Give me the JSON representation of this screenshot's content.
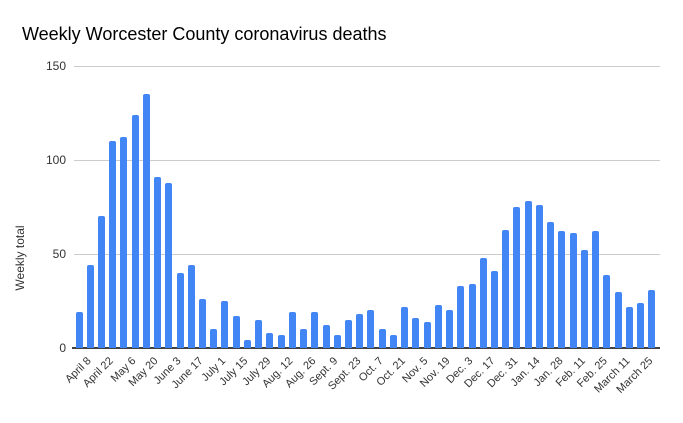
{
  "chart_data": {
    "type": "bar",
    "title": "Weekly Worcester County coronavirus deaths",
    "xlabel": "",
    "ylabel": "Weekly total",
    "ylim": [
      0,
      150
    ],
    "y_ticks": [
      0,
      50,
      100,
      150
    ],
    "grid": true,
    "legend_position": "none",
    "bar_color": "#4285f4",
    "gridline_color": "#cccccc",
    "axis_color": "#424242",
    "label_note": "date labels shown under every other bar",
    "bars": [
      {
        "label": "April 8",
        "value": 19
      },
      {
        "label": "",
        "value": 44
      },
      {
        "label": "April 22",
        "value": 70
      },
      {
        "label": "",
        "value": 110
      },
      {
        "label": "May 6",
        "value": 112
      },
      {
        "label": "",
        "value": 124
      },
      {
        "label": "May 20",
        "value": 135
      },
      {
        "label": "",
        "value": 91
      },
      {
        "label": "June 3",
        "value": 88
      },
      {
        "label": "",
        "value": 40
      },
      {
        "label": "June 17",
        "value": 44
      },
      {
        "label": "",
        "value": 26
      },
      {
        "label": "July 1",
        "value": 10
      },
      {
        "label": "",
        "value": 25
      },
      {
        "label": "July 15",
        "value": 17
      },
      {
        "label": "",
        "value": 4
      },
      {
        "label": "July 29",
        "value": 15
      },
      {
        "label": "",
        "value": 8
      },
      {
        "label": "Aug. 12",
        "value": 7
      },
      {
        "label": "",
        "value": 19
      },
      {
        "label": "Aug. 26",
        "value": 10
      },
      {
        "label": "",
        "value": 19
      },
      {
        "label": "Sept. 9",
        "value": 12
      },
      {
        "label": "",
        "value": 7
      },
      {
        "label": "Sept. 23",
        "value": 15
      },
      {
        "label": "",
        "value": 18
      },
      {
        "label": "Oct. 7",
        "value": 20
      },
      {
        "label": "",
        "value": 10
      },
      {
        "label": "Oct. 21",
        "value": 7
      },
      {
        "label": "",
        "value": 22
      },
      {
        "label": "Nov. 5",
        "value": 16
      },
      {
        "label": "",
        "value": 14
      },
      {
        "label": "Nov. 19",
        "value": 23
      },
      {
        "label": "",
        "value": 20
      },
      {
        "label": "Dec. 3",
        "value": 33
      },
      {
        "label": "",
        "value": 34
      },
      {
        "label": "Dec. 17",
        "value": 48
      },
      {
        "label": "",
        "value": 41
      },
      {
        "label": "Dec. 31",
        "value": 63
      },
      {
        "label": "",
        "value": 75
      },
      {
        "label": "Jan. 14",
        "value": 78
      },
      {
        "label": "",
        "value": 76
      },
      {
        "label": "Jan. 28",
        "value": 67
      },
      {
        "label": "",
        "value": 62
      },
      {
        "label": "Feb. 11",
        "value": 61
      },
      {
        "label": "",
        "value": 52
      },
      {
        "label": "Feb. 25",
        "value": 62
      },
      {
        "label": "",
        "value": 39
      },
      {
        "label": "March 11",
        "value": 30
      },
      {
        "label": "",
        "value": 22
      },
      {
        "label": "March 25",
        "value": 24
      },
      {
        "label": "",
        "value": 31
      }
    ]
  }
}
